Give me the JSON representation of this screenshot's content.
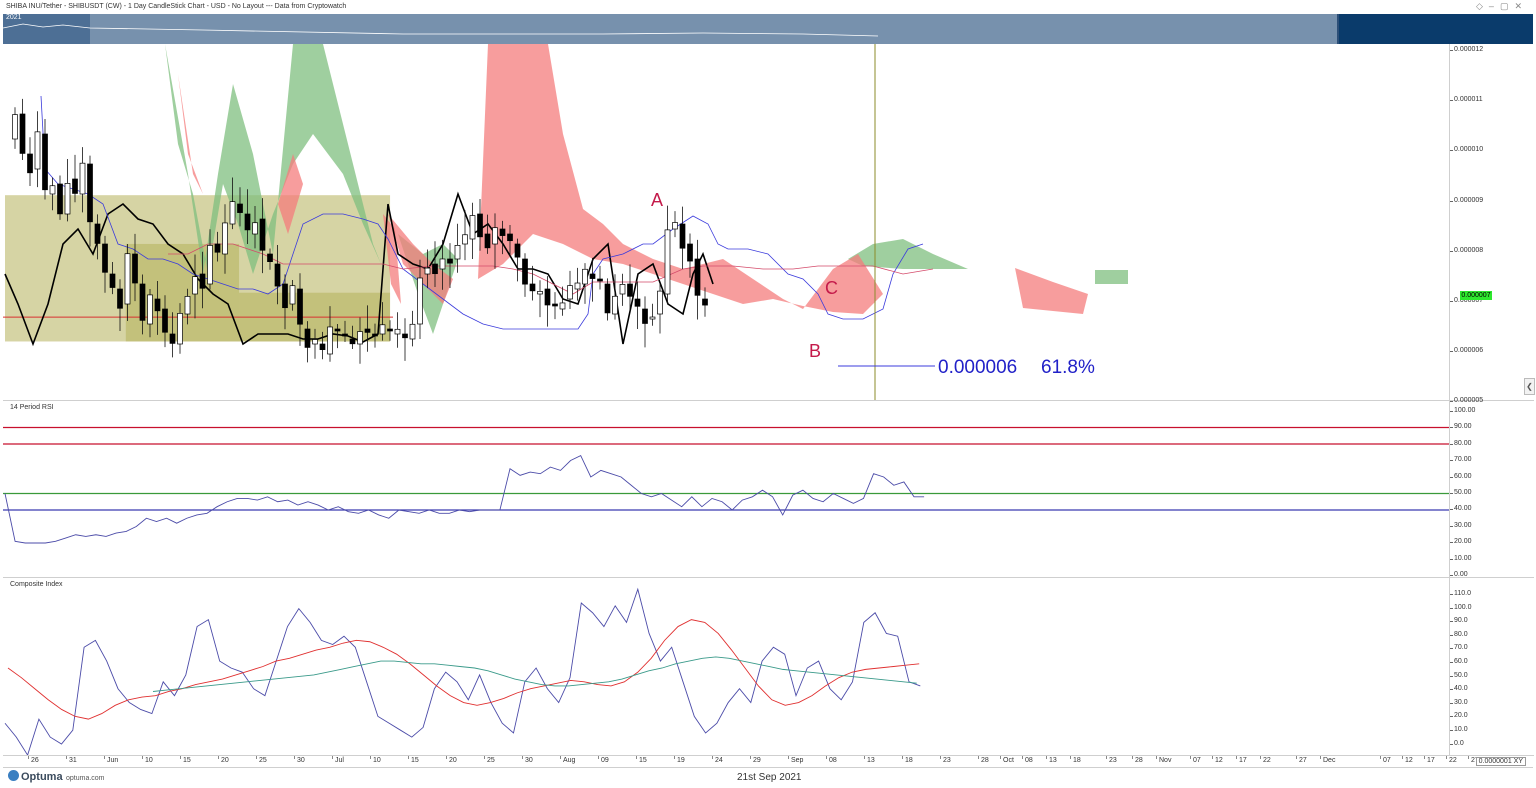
{
  "window": {
    "title": "SHIBA INU/Tether - SHIBUSDT (CW) - 1 Day CandleStick Chart - USD - No Layout --- Data from Cryptowatch",
    "icons": [
      "diamond-icon",
      "minimize-icon",
      "maximize-icon",
      "close-icon"
    ]
  },
  "overview": {
    "year_label": "2021"
  },
  "price_tag": "0.000007",
  "x_ticks": [
    "26",
    "31",
    "Jun",
    "10",
    "15",
    "20",
    "25",
    "30",
    "Jul",
    "10",
    "15",
    "20",
    "25",
    "30",
    "Aug",
    "09",
    "15",
    "19",
    "24",
    "29",
    "Sep",
    "08",
    "13",
    "18",
    "23",
    "28",
    "Oct",
    "08",
    "13",
    "18",
    "23",
    "28",
    "Nov",
    "07",
    "12",
    "17",
    "22",
    "27",
    "Dec",
    "07",
    "12",
    "17",
    "22",
    "27"
  ],
  "footer": {
    "brand": "Optuma",
    "site": "optuma.com",
    "date": "21st Sep 2021",
    "scale": "0.0000001 XY"
  },
  "colors": {
    "bull_cloud": "#7fbf7f",
    "bear_cloud": "#f47c7c",
    "tenkan": "#3b3bdc",
    "kijun": "#d44a6a",
    "rsi_line": "#4b4ba8",
    "ci_line": "#4b4ba8",
    "ci_fast_ma": "#e03030",
    "ci_slow_ma": "#3a9a8a",
    "box_fill": "#b5b05a"
  },
  "chart_data": [
    {
      "type": "candlestick",
      "title": "SHIBA INU/Tether - SHIBUSDT (CW) - 1 Day CandleStick Chart",
      "ylim": [
        4.8e-06,
        1.21e-05
      ],
      "y_ticks": [
        "0.000012",
        "0.000011",
        "0.000010",
        "0.000009",
        "0.000008",
        "0.000007",
        "0.000006",
        "0.000005"
      ],
      "x_range": [
        "2021-05-24",
        "2021-12-31"
      ],
      "annotations": [
        {
          "label": "A",
          "x": "2021-08-15",
          "y": 9e-06
        },
        {
          "label": "B",
          "x": "2021-09-06",
          "y": 6e-06
        },
        {
          "label": "C",
          "x": "2021-09-08",
          "y": 7.2e-06
        },
        {
          "label": "fib_level",
          "text": "0.000006",
          "value": 5.7e-06
        },
        {
          "label": "fib_pct",
          "text": "61.8%"
        }
      ],
      "vertical_line": "2021-09-21",
      "horizontal_lines": [
        6.5e-06
      ],
      "boxes": [
        {
          "x": [
            "2021-05-24",
            "2021-07-14"
          ],
          "y": [
            6e-06,
            9e-06
          ]
        },
        {
          "x": [
            "2021-06-09",
            "2021-06-24"
          ],
          "y": [
            6e-06,
            8e-06
          ]
        },
        {
          "x": [
            "2021-06-24",
            "2021-07-14"
          ],
          "y": [
            6e-06,
            7e-06
          ]
        }
      ]
    },
    {
      "type": "line",
      "title": "14 Period RSI",
      "ylim": [
        0,
        100
      ],
      "y_ticks": [
        "100.00",
        "90.00",
        "80.00",
        "70.00",
        "60.00",
        "50.00",
        "40.00",
        "30.00",
        "20.00",
        "10.00",
        "0.00"
      ],
      "levels": [
        90,
        80,
        50,
        40
      ],
      "series": [
        {
          "values": [
            50,
            21,
            20,
            20,
            20,
            21,
            23,
            25,
            24,
            25,
            24,
            26,
            27,
            30,
            35,
            33,
            35,
            32,
            35,
            37,
            38,
            42,
            45,
            47,
            47,
            46,
            48,
            45,
            46,
            43,
            45,
            43,
            40,
            42,
            39,
            38,
            40,
            37,
            35,
            40,
            39,
            38,
            40,
            38,
            38,
            40,
            39,
            40,
            40,
            40,
            65,
            61,
            63,
            62,
            66,
            64,
            70,
            73,
            60,
            64,
            62,
            60,
            55,
            50,
            48,
            50,
            46,
            42,
            48,
            42,
            47,
            45,
            40,
            46,
            48,
            52,
            48,
            37,
            49,
            52,
            47,
            45,
            50,
            47,
            44,
            47,
            62,
            60,
            55,
            57,
            48,
            48
          ]
        }
      ]
    },
    {
      "type": "line",
      "title": "Composite Index",
      "ylim": [
        -5,
        118
      ],
      "y_ticks": [
        "110.0",
        "100.0",
        "90.0",
        "80.0",
        "70.0",
        "60.0",
        "50.0",
        "40.0",
        "30.0",
        "20.0",
        "10.0",
        "0.0"
      ],
      "series": [
        {
          "values": [
            15,
            5,
            -8,
            18,
            5,
            0,
            10,
            70,
            75,
            60,
            40,
            30,
            25,
            22,
            45,
            35,
            50,
            85,
            90,
            60,
            55,
            52,
            40,
            35,
            60,
            85,
            98,
            88,
            75,
            72,
            78,
            70,
            45,
            20,
            15,
            10,
            5,
            12,
            40,
            52,
            45,
            32,
            50,
            30,
            15,
            8,
            45,
            55,
            40,
            30,
            48,
            102,
            95,
            85,
            100,
            88,
            112,
            80,
            60,
            70,
            45,
            20,
            8,
            15,
            30,
            40,
            30,
            60,
            70,
            65,
            35,
            55,
            60,
            40,
            32,
            45,
            88,
            95,
            80,
            78,
            45,
            42
          ]
        },
        {
          "values": [
            55,
            48,
            40,
            32,
            25,
            20,
            18,
            22,
            28,
            32,
            34,
            35,
            38,
            40,
            43,
            45,
            47,
            50,
            53,
            56,
            60,
            62,
            65,
            68,
            70,
            73,
            75,
            74,
            70,
            65,
            58,
            50,
            42,
            35,
            30,
            28,
            30,
            33,
            37,
            40,
            42,
            44,
            46,
            45,
            43,
            42,
            45,
            52,
            62,
            75,
            85,
            90,
            88,
            80,
            68,
            55,
            42,
            32,
            28,
            30,
            35,
            42,
            48,
            52,
            54,
            55,
            56,
            57,
            58
          ]
        },
        {
          "values": [
            38,
            39,
            40,
            41,
            42,
            43,
            44,
            45,
            46,
            47,
            48,
            49,
            50,
            52,
            54,
            56,
            58,
            60,
            60,
            59,
            58,
            58,
            57,
            56,
            55,
            53,
            50,
            47,
            45,
            43,
            42,
            42,
            43,
            44,
            45,
            47,
            50,
            53,
            55,
            58,
            60,
            62,
            63,
            62,
            60,
            58,
            56,
            54,
            53,
            52,
            51,
            50,
            49,
            48,
            47,
            46,
            45,
            44
          ]
        }
      ]
    }
  ]
}
